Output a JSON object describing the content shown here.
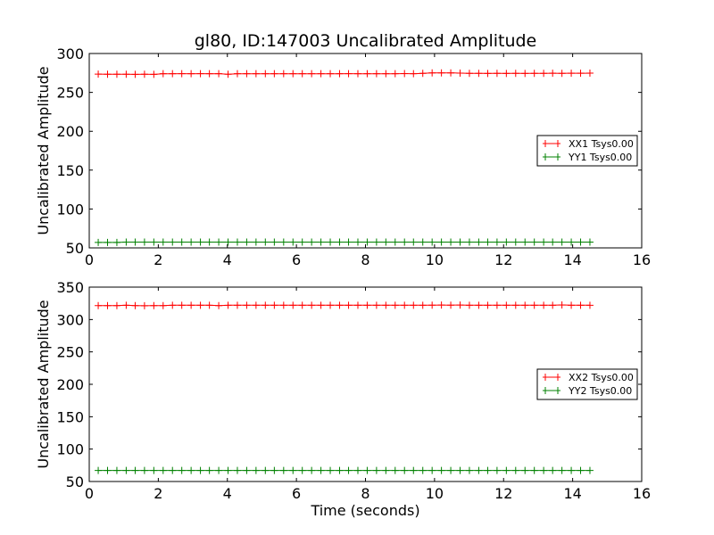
{
  "chart_data": [
    {
      "type": "line",
      "title": "gl80, ID:147003 Uncalibrated Amplitude",
      "xlabel": "",
      "ylabel": "Uncalibrated Amplitude",
      "xlim": [
        0,
        16
      ],
      "ylim": [
        50,
        300
      ],
      "xticks": [
        "0",
        "2",
        "4",
        "6",
        "8",
        "10",
        "12",
        "14",
        "16"
      ],
      "yticks": [
        "50",
        "100",
        "150",
        "200",
        "250",
        "300"
      ],
      "legend_position": "center-right",
      "x": [
        0.26,
        0.53,
        0.8,
        1.07,
        1.33,
        1.6,
        1.87,
        2.14,
        2.41,
        2.68,
        2.95,
        3.22,
        3.48,
        3.75,
        4.02,
        4.29,
        4.56,
        4.83,
        5.1,
        5.36,
        5.63,
        5.9,
        6.17,
        6.44,
        6.71,
        6.98,
        7.25,
        7.51,
        7.78,
        8.05,
        8.32,
        8.59,
        8.86,
        9.13,
        9.39,
        9.66,
        9.93,
        10.2,
        10.47,
        10.74,
        11.01,
        11.28,
        11.54,
        11.81,
        12.08,
        12.35,
        12.62,
        12.89,
        13.16,
        13.42,
        13.69,
        13.96,
        14.23,
        14.5
      ],
      "series": [
        {
          "name": "XX1 Tsys0.00",
          "color": "#ff0000",
          "values": [
            273.5,
            273.3,
            273.4,
            273.3,
            273.2,
            273.3,
            273.2,
            274,
            274,
            274.1,
            274,
            274.1,
            274,
            274.1,
            273.3,
            274,
            274,
            274,
            274,
            274,
            274,
            274,
            274,
            274,
            274,
            274,
            274,
            274.1,
            274,
            274,
            274,
            274,
            274,
            274.2,
            274,
            274.5,
            275,
            275,
            275.1,
            274.8,
            274.5,
            274.5,
            274.4,
            274.5,
            274.4,
            274.5,
            274.4,
            274.5,
            274.5,
            274.6,
            274.5,
            274.6,
            274.6,
            274.7
          ]
        },
        {
          "name": "YY1 Tsys0.00",
          "color": "#008000",
          "values": [
            57,
            57,
            57,
            57.5,
            57.5,
            57.5,
            57.5,
            57.5,
            57.5,
            57.5,
            57.5,
            57.5,
            57.5,
            57.5,
            57.5,
            57.5,
            57.5,
            57.5,
            57.5,
            57.5,
            57.5,
            57.5,
            57.5,
            57.5,
            57.5,
            57.5,
            57.5,
            57.5,
            57.5,
            57.5,
            57.5,
            57.5,
            57.5,
            57.5,
            57.5,
            57.5,
            57.5,
            57.5,
            57.5,
            57.5,
            57.5,
            57.5,
            57.5,
            57.5,
            57.5,
            57.5,
            57.5,
            57.5,
            57.5,
            57.5,
            57.5,
            57.5,
            57.5,
            57.5
          ]
        }
      ]
    },
    {
      "type": "line",
      "title": "",
      "xlabel": "Time (seconds)",
      "ylabel": "Uncalibrated Amplitude",
      "xlim": [
        0,
        16
      ],
      "ylim": [
        50,
        350
      ],
      "xticks": [
        "0",
        "2",
        "4",
        "6",
        "8",
        "10",
        "12",
        "14",
        "16"
      ],
      "yticks": [
        "50",
        "100",
        "150",
        "200",
        "250",
        "300",
        "350"
      ],
      "legend_position": "center-right",
      "x": [
        0.26,
        0.53,
        0.8,
        1.07,
        1.33,
        1.6,
        1.87,
        2.14,
        2.41,
        2.68,
        2.95,
        3.22,
        3.48,
        3.75,
        4.02,
        4.29,
        4.56,
        4.83,
        5.1,
        5.36,
        5.63,
        5.9,
        6.17,
        6.44,
        6.71,
        6.98,
        7.25,
        7.51,
        7.78,
        8.05,
        8.32,
        8.59,
        8.86,
        9.13,
        9.39,
        9.66,
        9.93,
        10.2,
        10.47,
        10.74,
        11.01,
        11.28,
        11.54,
        11.81,
        12.08,
        12.35,
        12.62,
        12.89,
        13.16,
        13.42,
        13.69,
        13.96,
        14.23,
        14.5
      ],
      "series": [
        {
          "name": "XX2 Tsys0.00",
          "color": "#ff0000",
          "values": [
            321.5,
            321.5,
            321.5,
            322,
            321.5,
            321.3,
            321.5,
            321.5,
            322,
            322,
            322,
            322,
            322,
            321.5,
            322,
            322,
            322,
            322,
            322,
            322,
            322,
            322,
            322,
            322,
            322,
            322,
            322,
            322,
            322,
            322,
            322,
            322,
            322,
            322,
            322,
            322,
            322.2,
            322.3,
            322.2,
            322.3,
            322,
            322,
            322,
            322,
            322,
            322,
            322,
            322,
            322,
            322,
            322.5,
            322,
            322,
            322
          ]
        },
        {
          "name": "YY2 Tsys0.00",
          "color": "#008000",
          "values": [
            67,
            67,
            67,
            67,
            67,
            67,
            67,
            67,
            67,
            67,
            67,
            67,
            67,
            67,
            67,
            67,
            67,
            67,
            67,
            67,
            67,
            67,
            67,
            67,
            67,
            67,
            67,
            67,
            67,
            67,
            67,
            67,
            67,
            67,
            67,
            67,
            67,
            67,
            67,
            67,
            67,
            67,
            67,
            67,
            67,
            67,
            67,
            67,
            67,
            67,
            67,
            67,
            67,
            67
          ]
        }
      ]
    }
  ]
}
